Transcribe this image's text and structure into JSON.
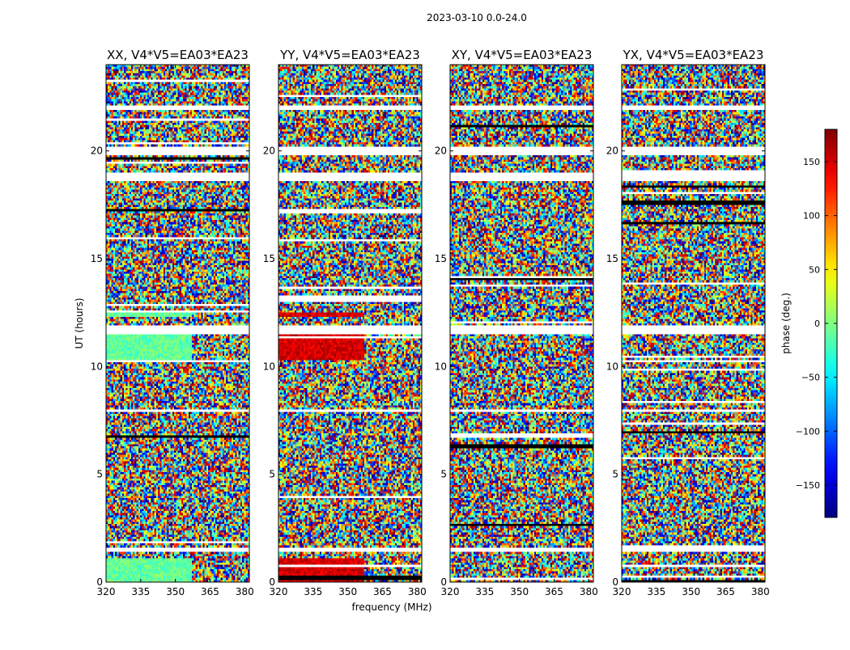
{
  "chart_data": {
    "type": "heatmap",
    "suptitle": "2023-03-10 0.0-24.0",
    "xlabel": "frequency (MHz)",
    "ylabel": "UT (hours)",
    "xlim": [
      320,
      382
    ],
    "ylim": [
      0,
      24
    ],
    "xticks": [
      320,
      335,
      350,
      365,
      380
    ],
    "yticks": [
      0,
      5,
      10,
      15,
      20
    ],
    "panels": [
      {
        "title": "XX, V4*V5=EA03*EA23",
        "correlation": "XX",
        "coherent_bias_deg": -10
      },
      {
        "title": "YY, V4*V5=EA03*EA23",
        "correlation": "YY",
        "coherent_bias_deg": 150
      },
      {
        "title": "XY, V4*V5=EA03*EA23",
        "correlation": "XY",
        "coherent_bias_deg": null
      },
      {
        "title": "YX, V4*V5=EA03*EA23",
        "correlation": "YX",
        "coherent_bias_deg": null
      }
    ],
    "coherent_intervals_hours": [
      [
        0.0,
        1.1
      ],
      [
        10.3,
        11.5
      ],
      [
        12.3,
        12.5
      ]
    ],
    "coherent_freq_range_mhz": [
      320,
      357
    ],
    "flagged_intervals_hours": [
      [
        1.4,
        1.6
      ],
      [
        7.9,
        8.0
      ],
      [
        11.5,
        11.9
      ],
      [
        18.6,
        19.0
      ],
      [
        19.8,
        20.2
      ],
      [
        21.9,
        22.1
      ]
    ],
    "colorbar": {
      "label": "phase (deg.)",
      "range": [
        -180,
        180
      ],
      "ticks": [
        -150,
        -100,
        -50,
        0,
        50,
        100,
        150
      ],
      "tick_labels": [
        "−150",
        "−100",
        "−50",
        "0",
        "50",
        "100",
        "150"
      ],
      "colormap": "jet"
    }
  }
}
